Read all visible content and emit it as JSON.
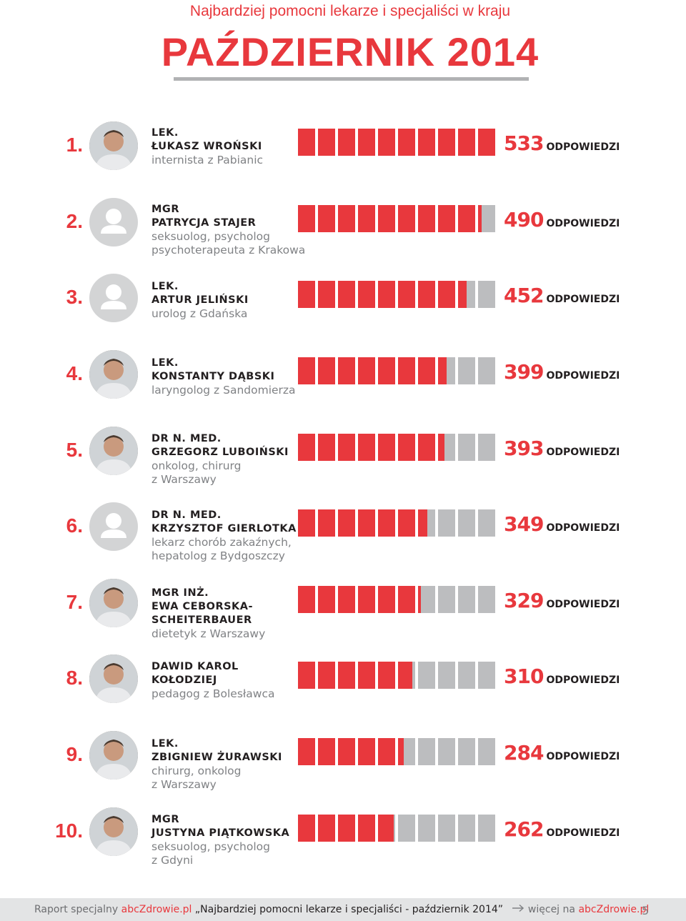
{
  "header": {
    "subtitle": "Najbardziej pomocni lekarze i specjaliści w kraju",
    "title": "PAŹDZIERNIK 2014"
  },
  "unit_label": "ODPOWIEDZI",
  "scale_max": 533,
  "colors": {
    "accent": "#e8383d",
    "bar_empty": "#bcbdbf",
    "text_dark": "#231f20",
    "text_gray": "#808285"
  },
  "doctors": [
    {
      "rank": "1.",
      "degree": "LEK.",
      "name": "ŁUKASZ WROŃSKI",
      "spec": [
        "internista z Pabianic"
      ],
      "answers": 533,
      "avatar": "photo"
    },
    {
      "rank": "2.",
      "degree": "MGR",
      "name": "PATRYCJA STAJER",
      "spec": [
        "seksuolog, psycholog",
        "psychoterapeuta z Krakowa"
      ],
      "answers": 490,
      "avatar": "placeholder"
    },
    {
      "rank": "3.",
      "degree": "LEK.",
      "name": "ARTUR JELIŃSKI",
      "spec": [
        "urolog z Gdańska"
      ],
      "answers": 452,
      "avatar": "placeholder"
    },
    {
      "rank": "4.",
      "degree": "LEK.",
      "name": "KONSTANTY DĄBSKI",
      "spec": [
        "laryngolog z Sandomierza"
      ],
      "answers": 399,
      "avatar": "photo"
    },
    {
      "rank": "5.",
      "degree": "DR N. MED.",
      "name": "GRZEGORZ LUBOIŃSKI",
      "spec": [
        "onkolog, chirurg",
        "z Warszawy"
      ],
      "answers": 393,
      "avatar": "photo"
    },
    {
      "rank": "6.",
      "degree": "DR N. MED.",
      "name": "KRZYSZTOF GIERLOTKA",
      "spec": [
        "lekarz chorób zakaźnych,",
        "hepatolog z Bydgoszczy"
      ],
      "answers": 349,
      "avatar": "placeholder"
    },
    {
      "rank": "7.",
      "degree": "MGR INŻ.",
      "name": "EWA CEBORSKA-\nSCHEITERBAUER",
      "spec": [
        "dietetyk z Warszawy"
      ],
      "answers": 329,
      "avatar": "photo"
    },
    {
      "rank": "8.",
      "degree": "",
      "name": "DAWID KAROL\nKOŁODZIEJ",
      "spec": [
        "pedagog z Bolesławca"
      ],
      "answers": 310,
      "avatar": "photo"
    },
    {
      "rank": "9.",
      "degree": "LEK.",
      "name": "ZBIGNIEW ŻURAWSKI",
      "spec": [
        "chirurg, onkolog",
        "z Warszawy"
      ],
      "answers": 284,
      "avatar": "photo"
    },
    {
      "rank": "10.",
      "degree": "MGR",
      "name": "JUSTYNA PIĄTKOWSKA",
      "spec": [
        "seksuolog, psycholog",
        "z Gdyni"
      ],
      "answers": 262,
      "avatar": "photo"
    }
  ],
  "footer": {
    "prefix": "Raport specjalny ",
    "brand": "abcZdrowie.pl",
    "report_title": " „Najbardziej pomocni lekarze i specjaliści - październik 2014”",
    "more": " więcej na ",
    "more_link": "abcZdrowie.pl",
    "page_number": "5"
  }
}
